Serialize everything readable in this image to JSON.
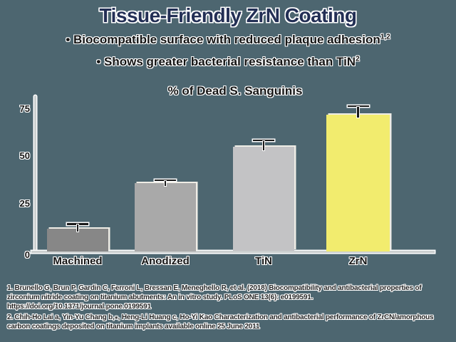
{
  "slide": {
    "title": "Tissue-Friendly ZrN Coating",
    "bullets": [
      {
        "marker": "•",
        "text": "Biocompatible surface with reduced plaque adhesion",
        "sup": "1,2"
      },
      {
        "marker": "•",
        "text": "Shows greater bacterial resistance than TiN",
        "sup": "2"
      }
    ],
    "footnotes": [
      "1. Brunello G, Brun P, Gardin C, Ferroni L, Bressan E, Meneghello R, et al. (2018) Biocompatibility and antibacterial properties of zirconium nitride coating on titanium abutments: An in vitro study. PLoS ONE 13(6): e0199591. https://doi.org/10.1371/journal.pone.0199591",
      "2. Chih-Ho Lai a, Yin-Yu Chang b,⁎, Heng-Li Huang c, Ho-Yi Kao Characterization and antibacterial performance of ZrCN/amorphous carbon coatings deposited on titanium implants available online 25 June 2011"
    ]
  },
  "chart_data": {
    "type": "bar",
    "title": "% of Dead S. Sanguinis",
    "categories": [
      "Machined",
      "Anodized",
      "TiN",
      "ZrN"
    ],
    "values": [
      12,
      36,
      55,
      72
    ],
    "errors_plus": [
      2,
      1,
      3,
      4
    ],
    "y_ticks": [
      75,
      50,
      25,
      0
    ],
    "ylim": [
      0,
      80
    ],
    "xlabel": "",
    "ylabel": "",
    "grid": "off",
    "legend": "none",
    "bar_colors": [
      "#878787",
      "#a9a9a9",
      "#c3c3c5",
      "#f2ec6e"
    ]
  },
  "colors": {
    "background": "#4d6670",
    "title_text": "#232f55",
    "body_text": "#141414",
    "footnote_text": "#262626",
    "axis": "#cbcfcf",
    "error_bar": "#1a1a1a",
    "highlight_bar": "#f2ec6e"
  }
}
